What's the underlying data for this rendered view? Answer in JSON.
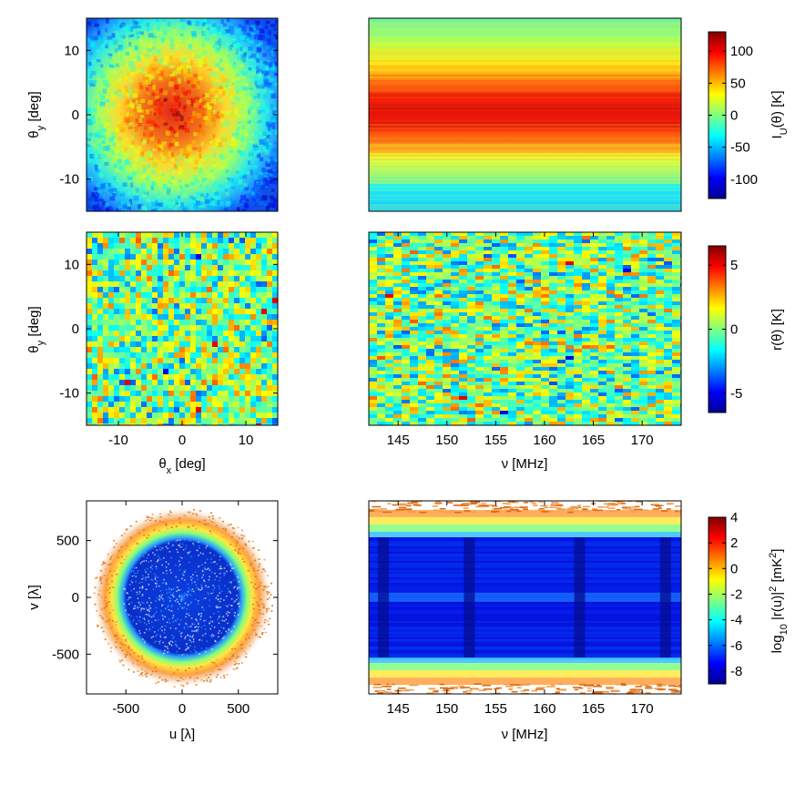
{
  "colors": {
    "jet": [
      "#00008f",
      "#0000ff",
      "#0080ff",
      "#00ffff",
      "#80ff80",
      "#ffff00",
      "#ff8000",
      "#ff0000",
      "#800000"
    ]
  },
  "axis_labels": {
    "theta_y": "θy [deg]",
    "theta_x": "θx [deg]",
    "nu": "ν [MHz]",
    "u": "u [λ]",
    "v": "v [λ]"
  },
  "chart_data": [
    {
      "id": "sky_map",
      "type": "heatmap",
      "title": "",
      "xlabel": "",
      "ylabel": "θy [deg]",
      "xlim": [
        -15,
        15
      ],
      "ylim": [
        -15,
        15
      ],
      "xticks": [],
      "yticks": [
        -10,
        0,
        10
      ],
      "colormap": "jet",
      "clim": [
        -130,
        130
      ],
      "description_values": {
        "center_peak": 120,
        "edge": -120
      }
    },
    {
      "id": "sky_vs_freq",
      "type": "heatmap",
      "xlabel": "",
      "ylabel": "",
      "xlim": [
        142,
        174
      ],
      "ylim": [
        -15,
        15
      ],
      "xticks": [],
      "yticks": [],
      "colormap": "jet",
      "clim": [
        -130,
        130
      ]
    },
    {
      "id": "colorbar_I",
      "type": "colorbar",
      "label": "I_U(θ) [K]",
      "range": [
        -130,
        130
      ],
      "ticks": [
        -100,
        -50,
        0,
        50,
        100
      ]
    },
    {
      "id": "residual_map",
      "type": "heatmap",
      "xlabel": "θx [deg]",
      "ylabel": "θy [deg]",
      "xlim": [
        -15,
        15
      ],
      "ylim": [
        -15,
        15
      ],
      "xticks": [
        -10,
        0,
        10
      ],
      "yticks": [
        -10,
        0,
        10
      ],
      "colormap": "jet",
      "clim": [
        -6.5,
        6.5
      ]
    },
    {
      "id": "residual_vs_freq",
      "type": "heatmap",
      "xlabel": "ν [MHz]",
      "ylabel": "",
      "xlim": [
        142,
        174
      ],
      "ylim": [
        -15,
        15
      ],
      "xticks": [
        145,
        150,
        155,
        160,
        165,
        170
      ],
      "yticks": [],
      "colormap": "jet",
      "clim": [
        -6.5,
        6.5
      ]
    },
    {
      "id": "colorbar_r",
      "type": "colorbar",
      "label": "r(θ) [K]",
      "range": [
        -6.5,
        6.5
      ],
      "ticks": [
        -5,
        0,
        5
      ]
    },
    {
      "id": "uv_map",
      "type": "heatmap",
      "xlabel": "u [λ]",
      "ylabel": "v [λ]",
      "xlim": [
        -850,
        850
      ],
      "ylim": [
        -850,
        850
      ],
      "xticks": [
        -500,
        0,
        500
      ],
      "yticks": [
        -500,
        0,
        500
      ],
      "colormap": "jet",
      "clim": [
        -9,
        4
      ]
    },
    {
      "id": "uv_vs_freq",
      "type": "heatmap",
      "xlabel": "ν [MHz]",
      "ylabel": "",
      "xlim": [
        142,
        174
      ],
      "ylim": [
        -850,
        850
      ],
      "xticks": [
        145,
        150,
        155,
        160,
        165,
        170
      ],
      "yticks": [],
      "colormap": "jet",
      "clim": [
        -9,
        4
      ]
    },
    {
      "id": "colorbar_log",
      "type": "colorbar",
      "label": "log10 |r(u)|² [mK²]",
      "range": [
        -9,
        4
      ],
      "ticks": [
        -8,
        -6,
        -4,
        -2,
        0,
        2,
        4
      ]
    }
  ]
}
